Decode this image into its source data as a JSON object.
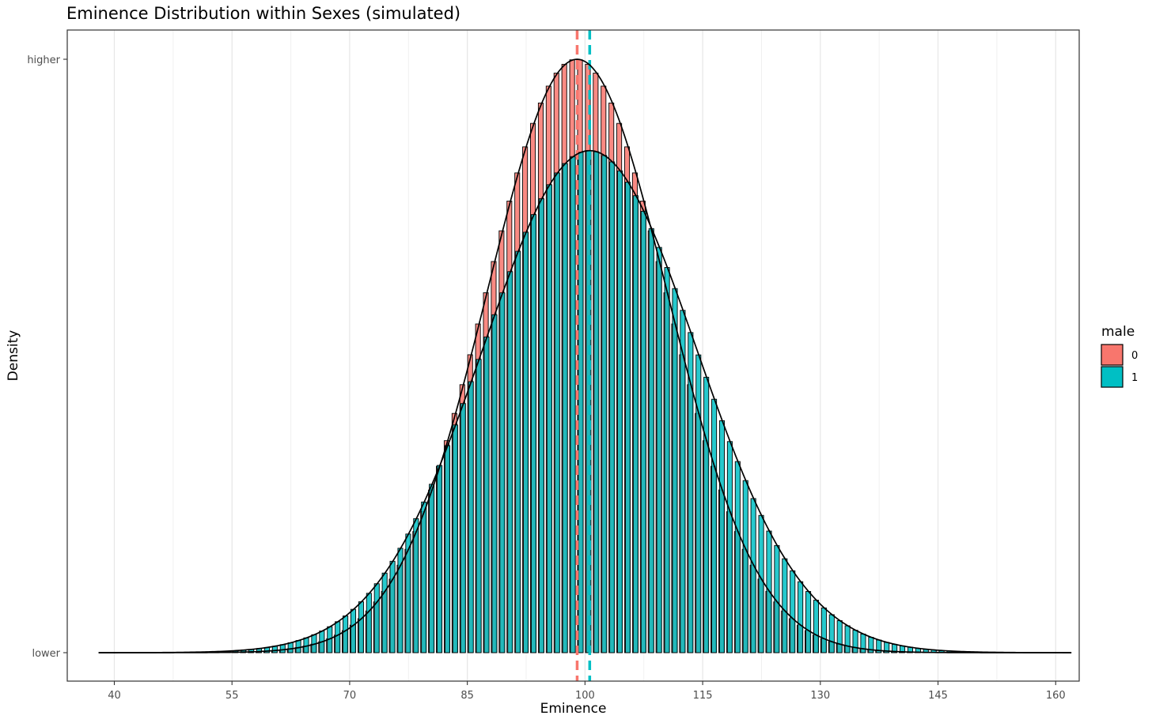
{
  "chart_data": {
    "type": "bar",
    "title": "Eminence Distribution within Sexes (simulated)",
    "xlabel": "Eminence",
    "ylabel": "Density",
    "xlim": [
      34,
      163
    ],
    "x_ticks": [
      40,
      55,
      70,
      85,
      100,
      115,
      130,
      145,
      160
    ],
    "y_tick_labels": [
      "higher",
      "lower"
    ],
    "y_scale": "relative density (0 = lower, 1 = higher)",
    "grid": true,
    "legend": {
      "title": "male",
      "placement": "right"
    },
    "bin_width": 1,
    "series": [
      {
        "name": "0",
        "color": "#F8766D",
        "mean": 99,
        "sd": 11.5,
        "peak_relative_density": 1.0
      },
      {
        "name": "1",
        "color": "#00BFC4",
        "mean": 100.6,
        "sd": 13.6,
        "peak_relative_density": 0.846
      }
    ],
    "mean_lines": [
      {
        "series": "0",
        "x": 99,
        "color": "#F8766D",
        "style": "dashed"
      },
      {
        "series": "1",
        "x": 100.6,
        "color": "#00BFC4",
        "style": "dashed"
      }
    ],
    "curve_range": [
      38,
      162
    ]
  }
}
